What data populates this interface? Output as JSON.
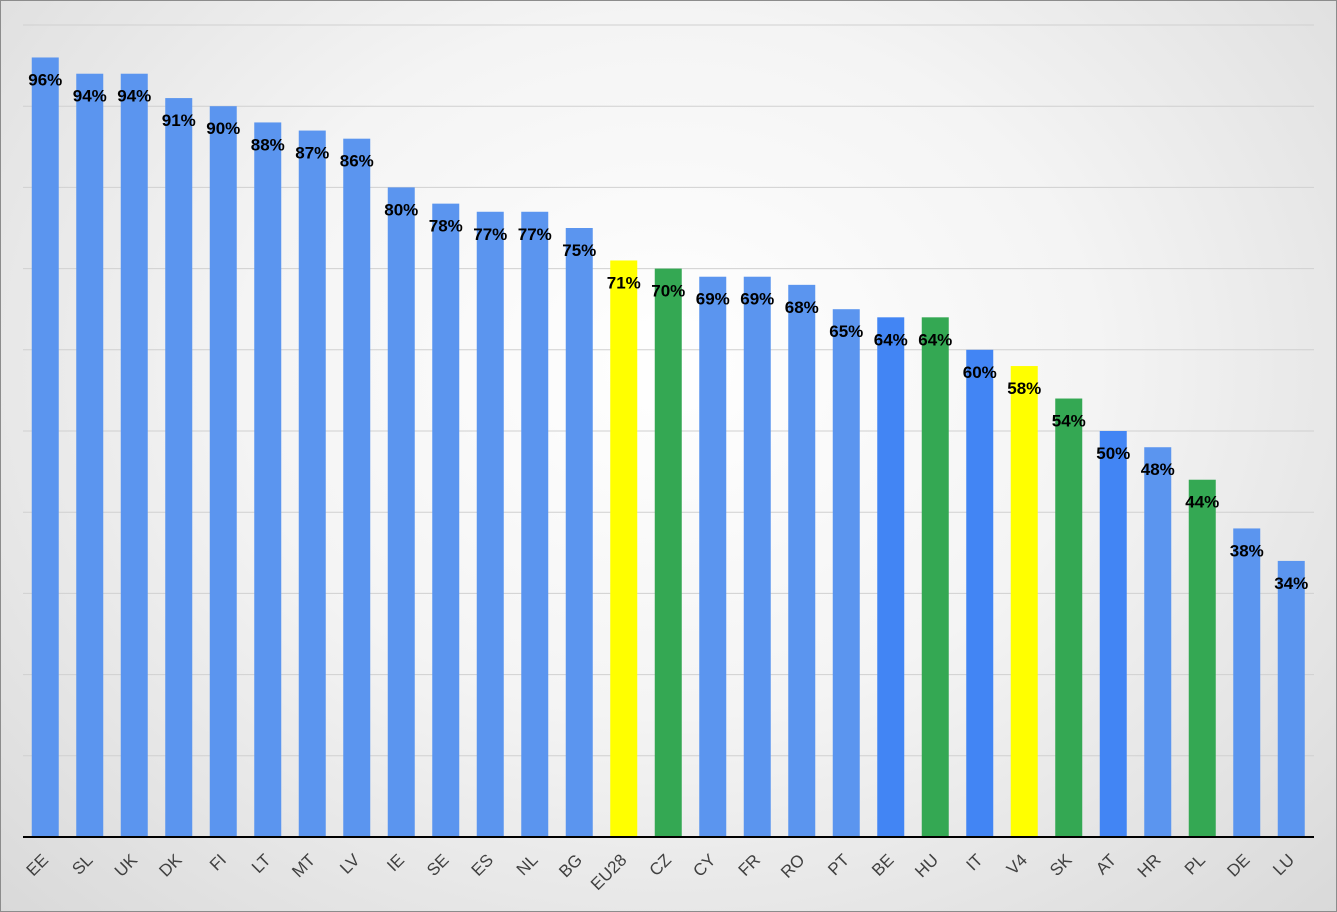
{
  "chart_data": {
    "type": "bar",
    "title": "",
    "xlabel": "",
    "ylabel": "",
    "ylim": [
      0,
      100
    ],
    "grid": true,
    "categories": [
      "EE",
      "SL",
      "UK",
      "DK",
      "FI",
      "LT",
      "MT",
      "LV",
      "IE",
      "SE",
      "ES",
      "NL",
      "BG",
      "EU28",
      "CZ",
      "CY",
      "FR",
      "RO",
      "PT",
      "BE",
      "HU",
      "IT",
      "V4",
      "SK",
      "AT",
      "HR",
      "PL",
      "DE",
      "LU"
    ],
    "values": [
      96,
      94,
      94,
      91,
      90,
      88,
      87,
      86,
      80,
      78,
      77,
      77,
      75,
      71,
      70,
      69,
      69,
      68,
      65,
      64,
      64,
      60,
      58,
      54,
      50,
      48,
      44,
      38,
      34
    ],
    "data_labels": [
      "96%",
      "94%",
      "94%",
      "91%",
      "90%",
      "88%",
      "87%",
      "86%",
      "80%",
      "78%",
      "77%",
      "77%",
      "75%",
      "71%",
      "70%",
      "69%",
      "69%",
      "68%",
      "65%",
      "64%",
      "64%",
      "60%",
      "58%",
      "54%",
      "50%",
      "48%",
      "44%",
      "38%",
      "34%"
    ],
    "bar_colors": [
      "#5b95ef",
      "#5b95ef",
      "#5b95ef",
      "#5b95ef",
      "#5b95ef",
      "#5b95ef",
      "#5b95ef",
      "#5b95ef",
      "#5b95ef",
      "#5b95ef",
      "#5b95ef",
      "#5b95ef",
      "#5b95ef",
      "#ffff00",
      "#34a853",
      "#5b95ef",
      "#5b95ef",
      "#5b95ef",
      "#5b95ef",
      "#4285f4",
      "#34a853",
      "#4285f4",
      "#ffff00",
      "#34a853",
      "#4285f4",
      "#5b95ef",
      "#34a853",
      "#5b95ef",
      "#5b95ef"
    ],
    "colors": {
      "default": "#5b95ef",
      "highlight_average": "#ffff00",
      "highlight_v4": "#34a853",
      "alternate_blue": "#4285f4"
    }
  }
}
